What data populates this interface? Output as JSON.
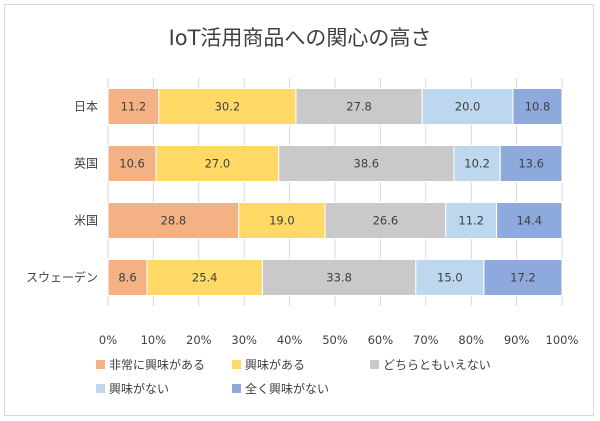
{
  "chart_data": {
    "type": "bar",
    "orientation": "horizontal",
    "stacked": "percent",
    "title": "IoT活用商品への関心の高さ",
    "categories": [
      "日本",
      "英国",
      "米国",
      "スウェーデン"
    ],
    "series": [
      {
        "name": "非常に興味がある",
        "color": "#f4b183",
        "values": [
          11.2,
          10.6,
          28.8,
          8.6
        ],
        "labels": [
          "11.2",
          "10.6",
          "28.8",
          "8.6"
        ]
      },
      {
        "name": "興味がある",
        "color": "#ffd966",
        "values": [
          30.2,
          27.0,
          19.0,
          25.4
        ],
        "labels": [
          "30.2",
          "27.0",
          "19.0",
          "25.4"
        ]
      },
      {
        "name": "どちらともいえない",
        "color": "#c9c9c9",
        "values": [
          27.8,
          38.6,
          26.6,
          33.8
        ],
        "labels": [
          "27.8",
          "38.6",
          "26.6",
          "33.8"
        ]
      },
      {
        "name": "興味がない",
        "color": "#bdd7ee",
        "values": [
          20.0,
          10.2,
          11.2,
          15.0
        ],
        "labels": [
          "20.0",
          "10.2",
          "11.2",
          "15.0"
        ]
      },
      {
        "name": "全く興味がない",
        "color": "#8ea9db",
        "values": [
          10.8,
          13.6,
          14.4,
          17.2
        ],
        "labels": [
          "10.8",
          "13.6",
          "14.4",
          "17.2"
        ]
      }
    ],
    "xlim": [
      0,
      100
    ],
    "xticks": [
      "0%",
      "10%",
      "20%",
      "30%",
      "40%",
      "50%",
      "60%",
      "70%",
      "80%",
      "90%",
      "100%"
    ],
    "grid": true,
    "legend_position": "bottom"
  }
}
